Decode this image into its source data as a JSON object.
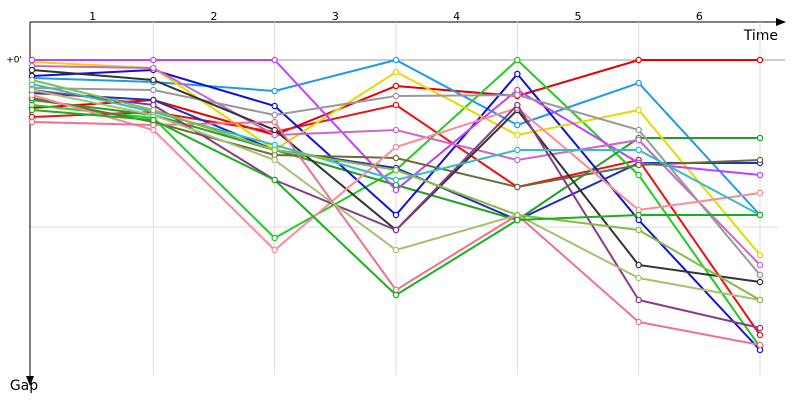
{
  "chart_data": {
    "type": "line",
    "x_label": "Time",
    "y_label": "Gap",
    "x": [
      0,
      1,
      2,
      3,
      4,
      5,
      6
    ],
    "xlim": [
      0,
      6
    ],
    "xticks": [
      {
        "value": 0.5,
        "label": "1"
      },
      {
        "value": 1.5,
        "label": "2"
      },
      {
        "value": 2.5,
        "label": "3"
      },
      {
        "value": 3.5,
        "label": "4"
      },
      {
        "value": 4.5,
        "label": "5"
      },
      {
        "value": 5.5,
        "label": "6"
      }
    ],
    "ylim": [
      -30,
      315
    ],
    "yticks": [
      {
        "value": 0,
        "label": "+0'"
      }
    ],
    "inverted_y": true,
    "grid": true,
    "series": [
      {
        "color": "#e60000",
        "values": [
          48,
          40,
          75,
          26,
          36,
          0,
          0
        ]
      },
      {
        "color": "#ee1111",
        "values": [
          57,
          52,
          72,
          45,
          127,
          100,
          275
        ]
      },
      {
        "color": "#1e9be6",
        "values": [
          18,
          22,
          31,
          0,
          65,
          23,
          155
        ]
      },
      {
        "color": "#22cc22",
        "values": [
          45,
          58,
          178,
          110,
          0,
          115,
          287
        ]
      },
      {
        "color": "#23a023",
        "values": [
          40,
          55,
          90,
          125,
          160,
          78,
          78
        ]
      },
      {
        "color": "#1010dd",
        "values": [
          16,
          10,
          46,
          155,
          14,
          160,
          290
        ]
      },
      {
        "color": "#2030c0",
        "values": [
          33,
          40,
          90,
          108,
          160,
          103,
          103
        ]
      },
      {
        "color": "#e6d800",
        "values": [
          2,
          8,
          90,
          12,
          75,
          50,
          195
        ]
      },
      {
        "color": "#c040ff",
        "values": [
          0,
          0,
          0,
          130,
          30,
          103,
          115
        ]
      },
      {
        "color": "#cc66cc",
        "values": [
          6,
          8,
          75,
          70,
          100,
          80,
          205
        ]
      },
      {
        "color": "#999999",
        "values": [
          28,
          30,
          55,
          36,
          35,
          70,
          215
        ]
      },
      {
        "color": "#6b6b3a",
        "values": [
          38,
          62,
          95,
          98,
          127,
          105,
          100
        ]
      },
      {
        "color": "#333333",
        "values": [
          10,
          20,
          70,
          170,
          50,
          205,
          222
        ]
      },
      {
        "color": "#ff8899",
        "values": [
          35,
          70,
          190,
          87,
          48,
          150,
          133
        ]
      },
      {
        "color": "#f07090",
        "values": [
          62,
          65,
          62,
          230,
          155,
          262,
          285
        ]
      },
      {
        "color": "#8b3a8b",
        "values": [
          30,
          45,
          120,
          170,
          45,
          240,
          268
        ]
      },
      {
        "color": "#a8c070",
        "values": [
          30,
          55,
          100,
          190,
          155,
          218,
          240
        ]
      },
      {
        "color": "#30c0c0",
        "values": [
          24,
          52,
          85,
          120,
          90,
          90,
          155
        ]
      },
      {
        "color": "#88bb44",
        "values": [
          20,
          50,
          90,
          110,
          155,
          170,
          240
        ]
      },
      {
        "color": "#19b019",
        "values": [
          50,
          60,
          120,
          235,
          160,
          155,
          155
        ]
      }
    ]
  }
}
